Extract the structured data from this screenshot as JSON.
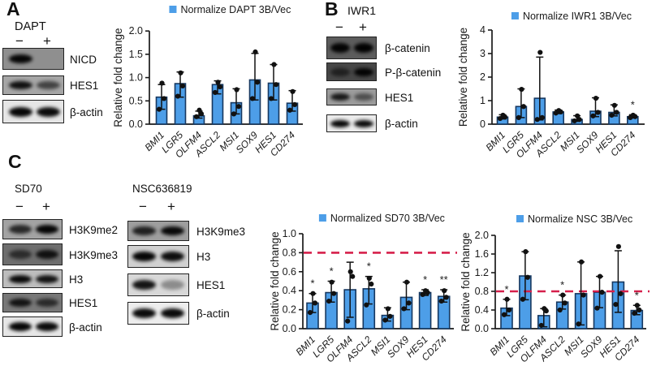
{
  "colors": {
    "bar_fill": "#4d9ee8",
    "bar_border": "#16375f",
    "point": "#111111",
    "refline": "#d6204b",
    "axis": "#1a1a1a"
  },
  "panel_a": {
    "label": "A",
    "treatment": "DAPT",
    "lane_signs": [
      "−",
      "+"
    ],
    "blots": [
      {
        "label": "NICD",
        "bg": "#8f8f8f",
        "bands": [
          0.95,
          0.05
        ]
      },
      {
        "label": "HES1",
        "bg": "#a6a6a6",
        "bands": [
          0.9,
          0.6
        ]
      },
      {
        "label": "β-actin",
        "bg": "#e6e6e6",
        "bands": [
          0.97,
          0.95
        ]
      }
    ]
  },
  "panel_b": {
    "label": "B",
    "treatment": "IWR1",
    "lane_signs": [
      "−",
      "+"
    ],
    "blots": [
      {
        "label": "β-catenin",
        "bg": "#5c5c5c",
        "bands": [
          0.95,
          0.97
        ]
      },
      {
        "label": "P-β-catenin",
        "bg": "#474747",
        "bands": [
          0.55,
          0.95
        ]
      },
      {
        "label": "HES1",
        "bg": "#9c9c9c",
        "bands": [
          0.85,
          0.5
        ]
      },
      {
        "label": "β-actin",
        "bg": "#ebebeb",
        "bands": [
          0.97,
          0.95
        ]
      }
    ]
  },
  "panel_c": {
    "label": "C",
    "groups": [
      {
        "treatment": "SD70",
        "lane_signs": [
          "−",
          "+"
        ],
        "blots": [
          {
            "label": "H3K9me2",
            "bg": "#a3a3a3",
            "bands": [
              0.75,
              0.97
            ]
          },
          {
            "label": "H3K9me3",
            "bg": "#6e6e6e",
            "bands": [
              0.6,
              0.85
            ]
          },
          {
            "label": "H3",
            "bg": "#bdbdbd",
            "bands": [
              0.95,
              0.9
            ]
          },
          {
            "label": "HES1",
            "bg": "#787878",
            "bands": [
              0.85,
              0.65
            ]
          },
          {
            "label": "β-actin",
            "bg": "#e6e6e6",
            "bands": [
              0.97,
              0.95
            ]
          }
        ]
      },
      {
        "treatment": "NSC636819",
        "lane_signs": [
          "−",
          "+"
        ],
        "blots": [
          {
            "label": "H3K9me3",
            "bg": "#9e9e9e",
            "bands": [
              0.8,
              0.95
            ]
          },
          {
            "label": "H3",
            "bg": "#d0d0d0",
            "bands": [
              0.97,
              0.93
            ]
          },
          {
            "label": "HES1",
            "bg": "#d8d8d8",
            "bands": [
              0.9,
              0.35
            ]
          },
          {
            "label": "β-actin",
            "bg": "#ededed",
            "bands": [
              0.95,
              0.95
            ]
          }
        ]
      }
    ]
  },
  "chart_data": [
    {
      "id": "dapt",
      "type": "bar",
      "title": "Normalize DAPT 3B/Vec",
      "ylabel": "Relative fold change",
      "ylim": [
        0,
        2.0
      ],
      "ytick_values": [
        0,
        0.5,
        1.0,
        1.5,
        2.0
      ],
      "ytick_labels": [
        "0.0",
        "0.5",
        "1.0",
        "1.5",
        "2.0"
      ],
      "categories": [
        "BMI1",
        "LGR5",
        "OLFM4",
        "ASCL2",
        "MSI1",
        "SOX9",
        "HES1",
        "CD274"
      ],
      "values": [
        0.58,
        0.87,
        0.18,
        0.85,
        0.46,
        0.95,
        0.88,
        0.45
      ],
      "err_low": [
        0.32,
        0.58,
        0.13,
        0.65,
        0.22,
        0.52,
        0.52,
        0.28
      ],
      "err_high": [
        0.85,
        1.12,
        0.28,
        0.93,
        0.76,
        1.52,
        1.28,
        0.72
      ],
      "points": [
        [
          0.32,
          0.55,
          0.88
        ],
        [
          0.6,
          0.82,
          1.1
        ],
        [
          0.16,
          0.22,
          0.3
        ],
        [
          0.68,
          0.8,
          0.9
        ],
        [
          0.22,
          0.38,
          0.74
        ],
        [
          0.55,
          0.9,
          1.55
        ],
        [
          0.55,
          0.85,
          1.28
        ],
        [
          0.3,
          0.42,
          0.7
        ]
      ],
      "sig": [
        "",
        "",
        "",
        "",
        "",
        "",
        "",
        ""
      ],
      "refline": null,
      "legend_position": "top"
    },
    {
      "id": "iwr1",
      "type": "bar",
      "title": "Normalize IWR1 3B/Vec",
      "ylabel": "Relative fold change",
      "ylim": [
        0,
        4
      ],
      "ytick_values": [
        0,
        1,
        2,
        3,
        4
      ],
      "ytick_labels": [
        "0",
        "1",
        "2",
        "3",
        "4"
      ],
      "categories": [
        "BMI1",
        "LGR5",
        "OLFM4",
        "ASCL2",
        "MSI1",
        "SOX9",
        "HES1",
        "CD274"
      ],
      "values": [
        0.3,
        0.75,
        1.1,
        0.52,
        0.2,
        0.55,
        0.5,
        0.32
      ],
      "err_low": [
        0.22,
        0.28,
        0.18,
        0.45,
        0.12,
        0.32,
        0.35,
        0.26
      ],
      "err_high": [
        0.4,
        1.5,
        2.85,
        0.6,
        0.36,
        1.12,
        0.82,
        0.4
      ],
      "points": [
        [
          0.24,
          0.3,
          0.38
        ],
        [
          0.28,
          0.75,
          1.48
        ],
        [
          0.2,
          0.28,
          3.05
        ],
        [
          0.47,
          0.52,
          0.58
        ],
        [
          0.14,
          0.2,
          0.35
        ],
        [
          0.35,
          0.5,
          1.1
        ],
        [
          0.38,
          0.5,
          0.8
        ],
        [
          0.28,
          0.32,
          0.38
        ]
      ],
      "sig": [
        "",
        "",
        "",
        "",
        "",
        "",
        "",
        "*"
      ],
      "refline": null,
      "legend_position": "top"
    },
    {
      "id": "sd70",
      "type": "bar",
      "title": "Normalized SD70 3B/Vec",
      "ylabel": "Relative fold change",
      "ylim": [
        0,
        1.0
      ],
      "ytick_values": [
        0,
        0.2,
        0.4,
        0.6,
        0.8,
        1.0
      ],
      "ytick_labels": [
        "0.0",
        "0.2",
        "0.4",
        "0.6",
        "0.8",
        "1.0"
      ],
      "categories": [
        "BMI1",
        "LGR5",
        "OLFM4",
        "ASCL2",
        "MSI1",
        "SOX9",
        "HES1",
        "CD274"
      ],
      "values": [
        0.27,
        0.38,
        0.41,
        0.42,
        0.14,
        0.33,
        0.38,
        0.34
      ],
      "err_low": [
        0.17,
        0.28,
        0.12,
        0.26,
        0.08,
        0.2,
        0.35,
        0.28
      ],
      "err_high": [
        0.37,
        0.5,
        0.7,
        0.55,
        0.22,
        0.49,
        0.41,
        0.41
      ],
      "points": [
        [
          0.17,
          0.27,
          0.37
        ],
        [
          0.29,
          0.37,
          0.49
        ],
        [
          0.08,
          0.55,
          0.6
        ],
        [
          0.25,
          0.47,
          0.53
        ],
        [
          0.09,
          0.13,
          0.21
        ],
        [
          0.21,
          0.27,
          0.49
        ],
        [
          0.36,
          0.38,
          0.4
        ],
        [
          0.29,
          0.33,
          0.4
        ]
      ],
      "sig": [
        "*",
        "*",
        "",
        "*",
        "",
        "",
        "*",
        "**"
      ],
      "refline": 0.8,
      "legend_position": "top"
    },
    {
      "id": "nsc",
      "type": "bar",
      "title": "Normalize NSC 3B/Vec",
      "ylabel": "Relative fold change",
      "ylim": [
        0,
        2.0
      ],
      "ytick_values": [
        0,
        0.4,
        0.8,
        1.2,
        1.6,
        2.0
      ],
      "ytick_labels": [
        "0.0",
        "0.4",
        "0.8",
        "1.2",
        "1.6",
        "2.0"
      ],
      "categories": [
        "BMI1",
        "LGR5",
        "OLFM4",
        "ASCL2",
        "MSI1",
        "SOX9",
        "HES1",
        "CD274"
      ],
      "values": [
        0.44,
        1.13,
        0.28,
        0.57,
        0.75,
        0.78,
        1.0,
        0.39
      ],
      "err_low": [
        0.28,
        0.62,
        0.04,
        0.42,
        0.08,
        0.45,
        0.35,
        0.3
      ],
      "err_high": [
        0.63,
        1.65,
        0.43,
        0.72,
        1.43,
        1.12,
        1.67,
        0.5
      ],
      "points": [
        [
          0.3,
          0.4,
          0.63
        ],
        [
          0.63,
          1.1,
          1.65
        ],
        [
          0.07,
          0.38,
          0.43
        ],
        [
          0.4,
          0.55,
          0.72
        ],
        [
          0.1,
          0.72,
          1.43
        ],
        [
          0.44,
          0.78,
          1.12
        ],
        [
          0.52,
          0.75,
          1.76
        ],
        [
          0.33,
          0.4,
          0.5
        ]
      ],
      "sig": [
        "*",
        "",
        "",
        "*",
        "",
        "",
        "",
        "*"
      ],
      "refline": 0.8,
      "legend_position": "top"
    }
  ]
}
